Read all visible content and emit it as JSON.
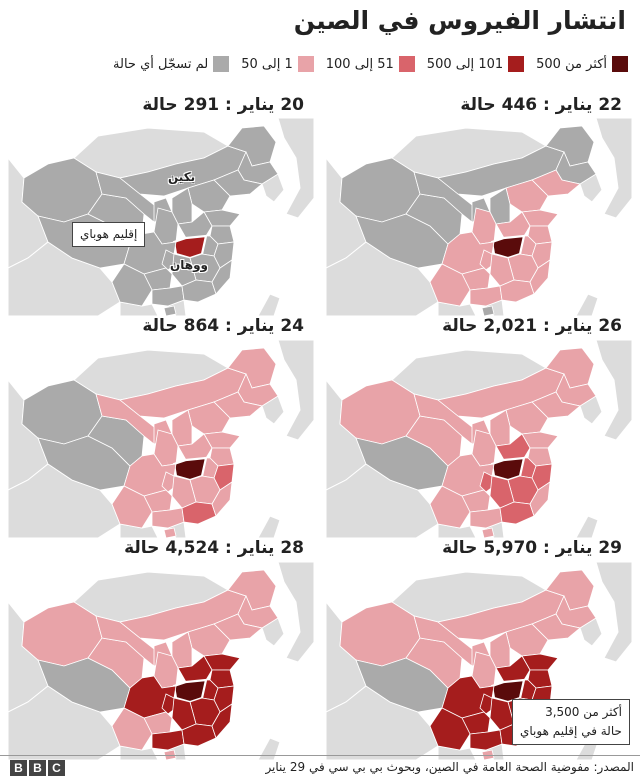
{
  "title": "انتشار الفيروس في الصين",
  "colors": {
    "over_500": "#5a0b0b",
    "c101_500": "#a51d1d",
    "c51_100": "#d9646b",
    "c1_50": "#e8a3a8",
    "none": "#aaaaaa",
    "land": "#dcdcdc",
    "water": "#ffffff"
  },
  "legend": [
    {
      "key": "over_500",
      "label": "أكثر من 500"
    },
    {
      "key": "c101_500",
      "label": "101 إلى 500"
    },
    {
      "key": "c51_100",
      "label": "51 إلى 100"
    },
    {
      "key": "c1_50",
      "label": "1 إلى 50"
    },
    {
      "key": "none",
      "label": "لم تسجّل أي حالة"
    }
  ],
  "panels": [
    {
      "title": "22 يناير : 446 حالة",
      "date": "22 يناير",
      "cases": 446,
      "stage": 1
    },
    {
      "title": "20 يناير : 291 حالة",
      "date": "20 يناير",
      "cases": 291,
      "stage": 0
    },
    {
      "title": "26 يناير : 2,021 حالة",
      "date": "26 يناير",
      "cases": 2021,
      "stage": 3
    },
    {
      "title": "24 يناير : 864 حالة",
      "date": "24 يناير",
      "cases": 864,
      "stage": 2
    },
    {
      "title": "29 يناير : 5,970 حالة",
      "date": "29 يناير",
      "cases": 5970,
      "stage": 5
    },
    {
      "title": "28 يناير : 4,524 حالة",
      "date": "28 يناير",
      "cases": 4524,
      "stage": 4
    }
  ],
  "labels": {
    "beijing": "بكين",
    "hubei": "إقليم هوباي",
    "wuhan": "ووهان",
    "callout_line1": "أكثر من 3,500",
    "callout_line2": "حالة في إقليم هوباي"
  },
  "footer": {
    "source": "المصدر: مفوضية الصحة العامة في الصين، وبحوث بي بي سي في 29 يناير",
    "logo": [
      "B",
      "B",
      "C"
    ]
  }
}
